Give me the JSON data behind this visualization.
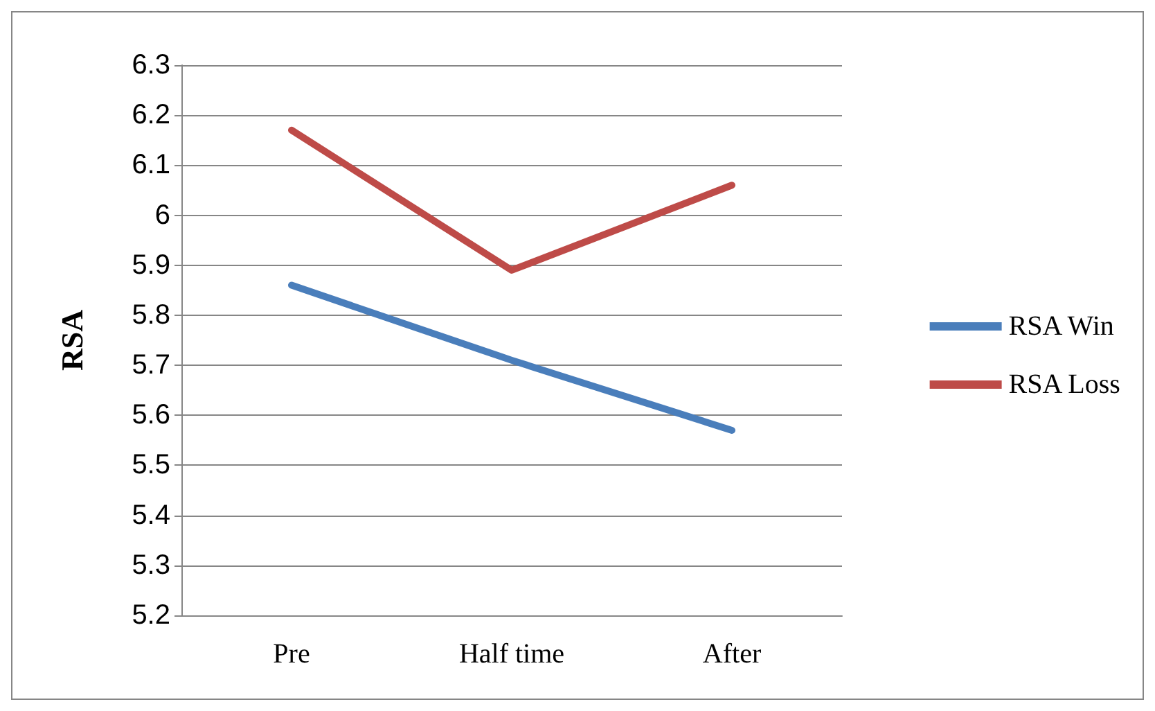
{
  "chart_data": {
    "type": "line",
    "ylabel": "RSA",
    "categories": [
      "Pre",
      "Half time",
      "After"
    ],
    "series": [
      {
        "name": "RSA Win",
        "color": "#4a7ebb",
        "values": [
          5.86,
          5.71,
          5.57
        ]
      },
      {
        "name": "RSA Loss",
        "color": "#be4b48",
        "values": [
          6.17,
          5.89,
          6.06
        ]
      }
    ],
    "ylim": [
      5.2,
      6.3
    ],
    "yticks": [
      5.2,
      5.3,
      5.4,
      5.5,
      5.6,
      5.7,
      5.8,
      5.9,
      6,
      6.1,
      6.2,
      6.3
    ],
    "grid": "y",
    "legend": "right",
    "marker": "none",
    "line_style": "solid"
  }
}
